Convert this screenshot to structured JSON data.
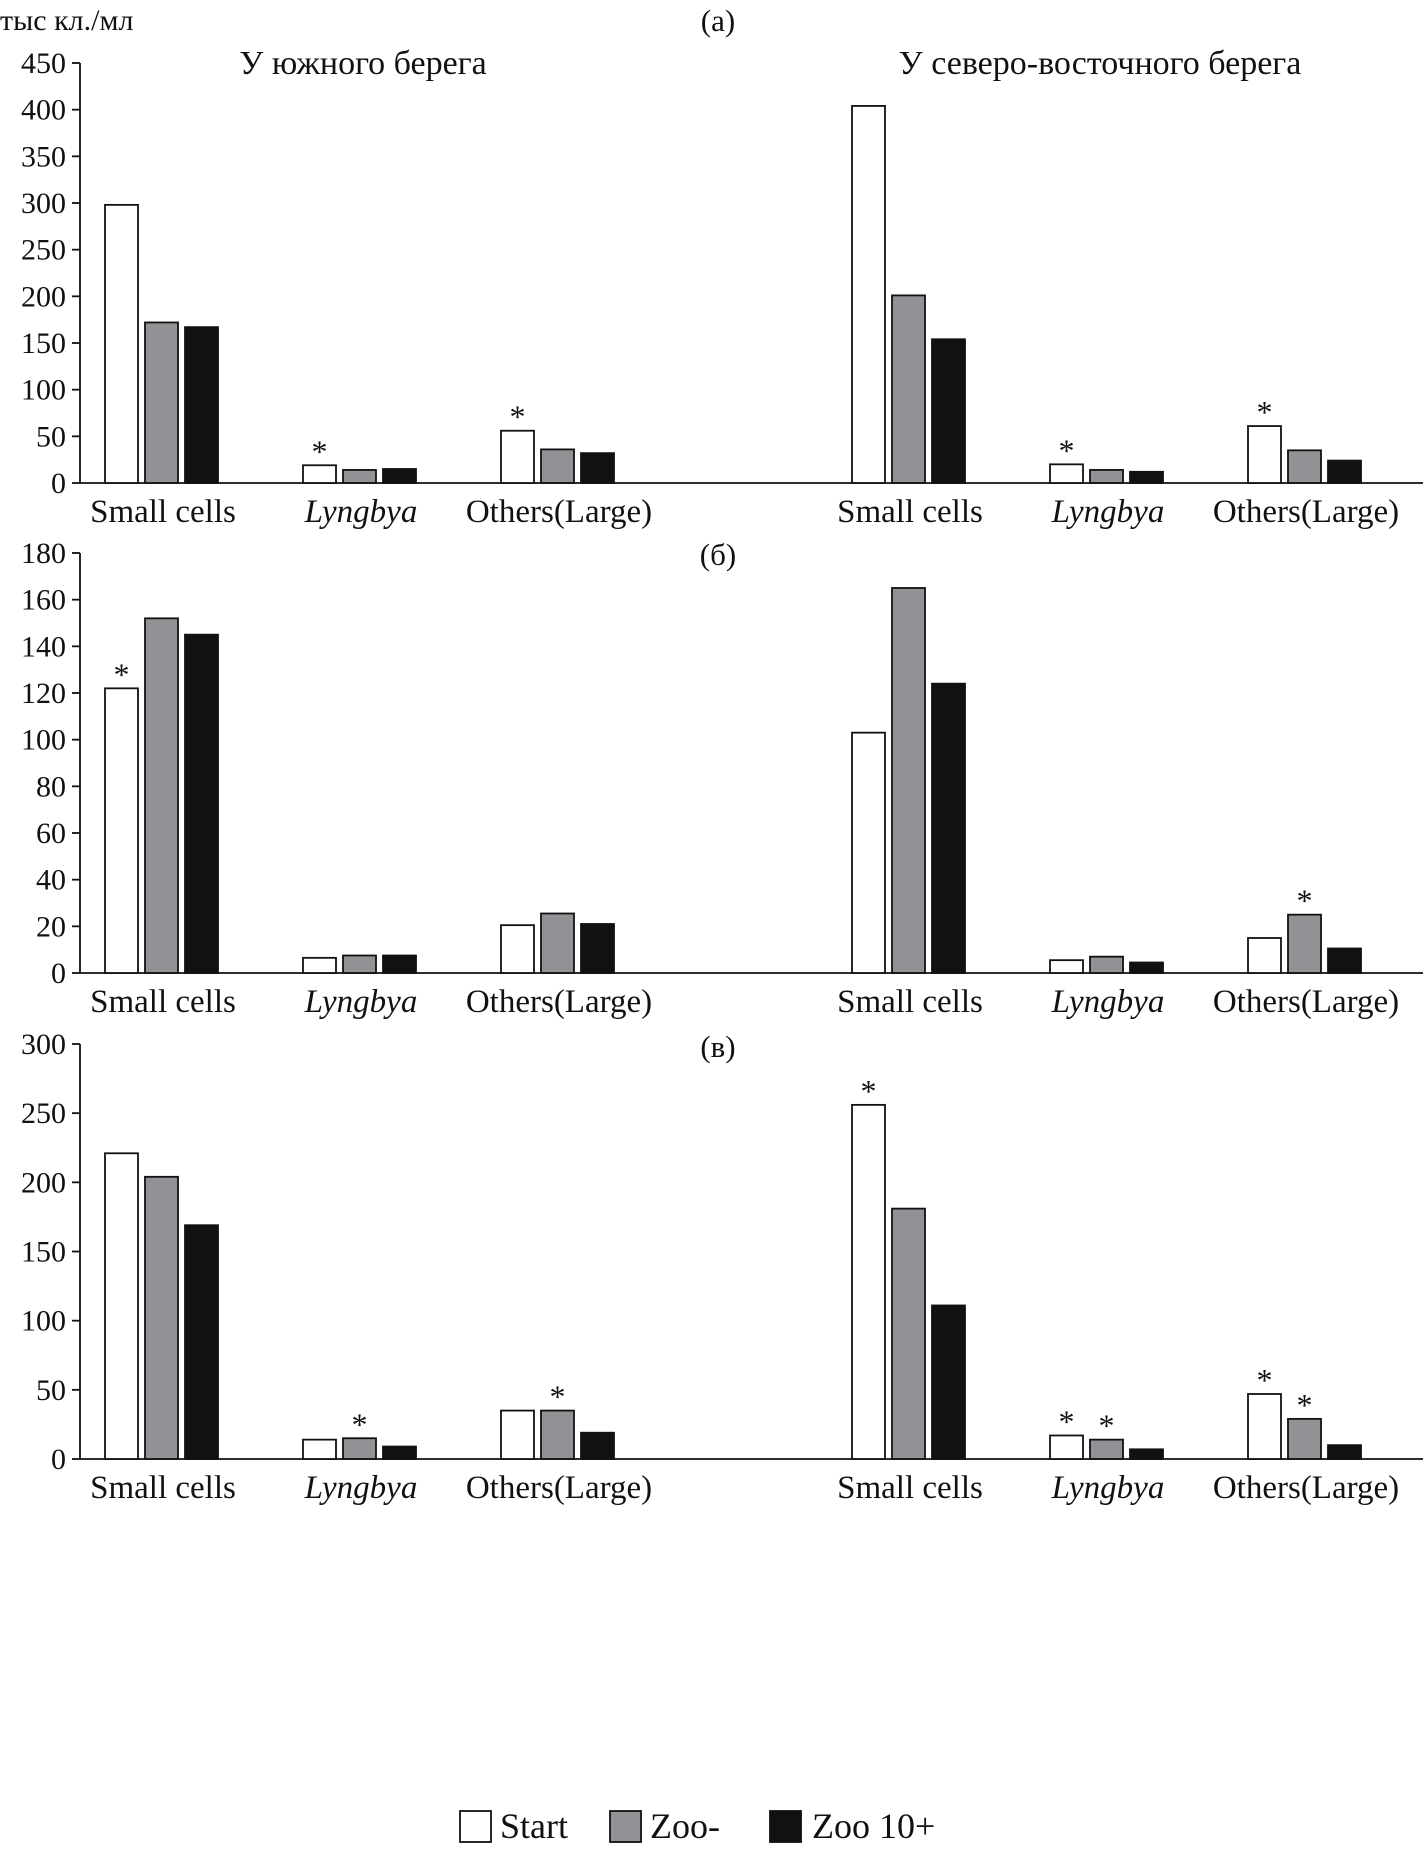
{
  "chart_data": {
    "type": "bar",
    "ylabel": "тыс кл./мл",
    "header_left": "У южного берега",
    "header_right": "У северо-восточного берега",
    "categories": [
      "Small cells",
      "Lyngbya",
      "Others(Large)"
    ],
    "italic_categories": [
      "Lyngbya"
    ],
    "legend": [
      {
        "name": "Start",
        "color": "#ffffff"
      },
      {
        "name": "Zoo-",
        "color": "#929296"
      },
      {
        "name": "Zoo 10+",
        "color": "#111111"
      }
    ],
    "panels": [
      {
        "label": "(a)",
        "ylim": [
          0,
          450
        ],
        "yticks": [
          0,
          50,
          100,
          150,
          200,
          250,
          300,
          350,
          400,
          450
        ],
        "groups": [
          {
            "site": "south",
            "values": [
              [
                298,
                172,
                167
              ],
              [
                19,
                14,
                15
              ],
              [
                56,
                36,
                32
              ]
            ],
            "stars": [
              [
                false,
                false,
                false
              ],
              [
                true,
                false,
                false
              ],
              [
                true,
                false,
                false
              ]
            ]
          },
          {
            "site": "northeast",
            "values": [
              [
                404,
                201,
                154
              ],
              [
                20,
                14,
                12
              ],
              [
                61,
                35,
                24
              ]
            ],
            "stars": [
              [
                false,
                false,
                false
              ],
              [
                true,
                false,
                false
              ],
              [
                true,
                false,
                false
              ]
            ]
          }
        ]
      },
      {
        "label": "(б)",
        "ylim": [
          0,
          180
        ],
        "yticks": [
          0,
          20,
          40,
          60,
          80,
          100,
          120,
          140,
          160,
          180
        ],
        "groups": [
          {
            "site": "south",
            "values": [
              [
                122,
                152,
                145
              ],
              [
                6.5,
                7.5,
                7.5
              ],
              [
                20.5,
                25.5,
                21
              ]
            ],
            "stars": [
              [
                true,
                false,
                false
              ],
              [
                false,
                false,
                false
              ],
              [
                false,
                false,
                false
              ]
            ]
          },
          {
            "site": "northeast",
            "values": [
              [
                103,
                165,
                124
              ],
              [
                5.5,
                7,
                4.5
              ],
              [
                15,
                25,
                10.5
              ]
            ],
            "stars": [
              [
                false,
                false,
                false
              ],
              [
                false,
                false,
                false
              ],
              [
                false,
                true,
                false
              ]
            ]
          }
        ]
      },
      {
        "label": "(в)",
        "ylim": [
          0,
          300
        ],
        "yticks": [
          0,
          50,
          100,
          150,
          200,
          250,
          300
        ],
        "groups": [
          {
            "site": "south",
            "values": [
              [
                221,
                204,
                169
              ],
              [
                14,
                15,
                9
              ],
              [
                35,
                35,
                19
              ]
            ],
            "stars": [
              [
                false,
                false,
                false
              ],
              [
                false,
                true,
                false
              ],
              [
                false,
                true,
                false
              ]
            ]
          },
          {
            "site": "northeast",
            "values": [
              [
                256,
                181,
                111
              ],
              [
                17,
                14,
                7
              ],
              [
                47,
                29,
                10
              ]
            ],
            "stars": [
              [
                true,
                false,
                false
              ],
              [
                true,
                true,
                false
              ],
              [
                true,
                true,
                false
              ]
            ]
          }
        ]
      }
    ]
  }
}
